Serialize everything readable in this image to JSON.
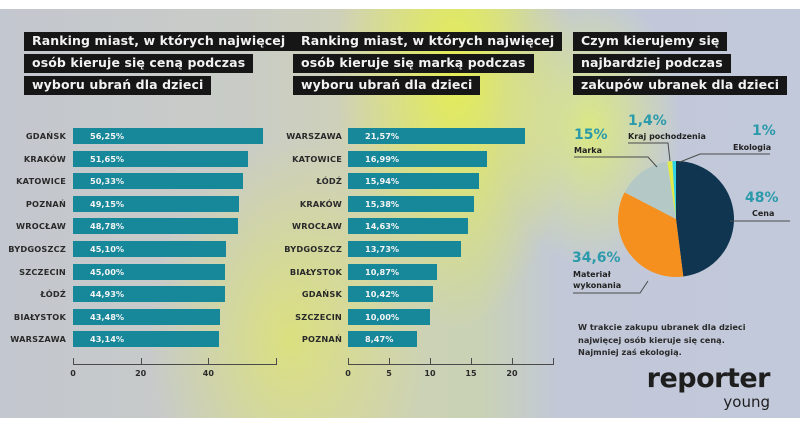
{
  "chart_data": [
    {
      "type": "bar",
      "orientation": "horizontal",
      "title": "Ranking miast, w których najwięcej osób kieruje się ceną podczas wyboru ubrań dla dzieci",
      "title_lines": [
        "Ranking miast, w których najwięcej",
        "osób kieruje się ceną podczas",
        "wyboru ubrań dla dzieci"
      ],
      "categories": [
        "GDAŃSK",
        "KRAKÓW",
        "KATOWICE",
        "POZNAŃ",
        "WROCŁAW",
        "BYDGOSZCZ",
        "SZCZECIN",
        "ŁÓDŹ",
        "BIAŁYSTOK",
        "WARSZAWA"
      ],
      "values": [
        56.25,
        51.65,
        50.33,
        49.15,
        48.78,
        45.1,
        45.0,
        44.93,
        43.48,
        43.14
      ],
      "data_labels": [
        "56,25%",
        "51,65%",
        "50,33%",
        "49,15%",
        "48,78%",
        "45,10%",
        "45,00%",
        "44,93%",
        "43,48%",
        "43,14%"
      ],
      "xlim": [
        0,
        60
      ],
      "xticks": [
        0,
        20,
        40,
        60
      ],
      "xtick_labels": [
        "0",
        "20",
        "40",
        ""
      ],
      "xlabel": "",
      "ylabel": "",
      "bar_color": "#16889a",
      "grid": false
    },
    {
      "type": "bar",
      "orientation": "horizontal",
      "title": "Ranking miast, w których najwięcej osób kieruje się marką podczas wyboru ubrań dla dzieci",
      "title_lines": [
        "Ranking miast, w których najwięcej",
        "osób kieruje się marką podczas",
        "wyboru ubrań dla dzieci"
      ],
      "categories": [
        "WARSZAWA",
        "KATOWICE",
        "ŁÓDŹ",
        "KRAKÓW",
        "WROCŁAW",
        "BYDGOSZCZ",
        "BIAŁYSTOK",
        "GDAŃSK",
        "SZCZECIN",
        "POZNAŃ"
      ],
      "values": [
        21.57,
        16.99,
        15.94,
        15.38,
        14.63,
        13.73,
        10.87,
        10.42,
        10.0,
        8.47
      ],
      "data_labels": [
        "21,57%",
        "16,99%",
        "15,94%",
        "15,38%",
        "14,63%",
        "13,73%",
        "10,87%",
        "10,42%",
        "10,00%",
        "8,47%"
      ],
      "xlim": [
        0,
        25
      ],
      "xticks": [
        0,
        5,
        10,
        15,
        20,
        25
      ],
      "xtick_labels": [
        "0",
        "5",
        "10",
        "15",
        "20",
        ""
      ],
      "xlabel": "",
      "ylabel": "",
      "bar_color": "#16889a",
      "grid": false
    },
    {
      "type": "pie",
      "title": "Czym kierujemy się najbardziej podczas zakupów ubranek dla dzieci",
      "title_lines": [
        "Czym kierujemy się",
        "najbardziej podczas",
        "zakupów ubranek dla dzieci"
      ],
      "slices": [
        {
          "label": "Cena",
          "value": 48,
          "display": "48%",
          "color": "#0f3550"
        },
        {
          "label": "Materiał wykonania",
          "value": 34.6,
          "display": "34,6%",
          "color": "#f5901e"
        },
        {
          "label": "Marka",
          "value": 15,
          "display": "15%",
          "color": "#b4c8c6"
        },
        {
          "label": "Kraj pochodzenia",
          "value": 1.4,
          "display": "1,4%",
          "color": "#e2ea4a"
        },
        {
          "label": "Ekologia",
          "value": 1,
          "display": "1%",
          "color": "#2fd3e6"
        }
      ],
      "start": "top",
      "direction": "clockwise"
    }
  ],
  "labels": {
    "pie_label_material_line1": "Materiał",
    "pie_label_material_line2": "wykonania"
  },
  "note": {
    "lines": [
      "W trakcie zakupu ubranek dla dzieci",
      "najwięcej osób kieruje się ceną.",
      "Najmniej zaś ekologią."
    ]
  },
  "logo": {
    "main": "reporter",
    "sub": "young"
  },
  "colors": {
    "accent": "#16889a",
    "pct_text": "#2b9aab",
    "title_bg": "#161616"
  }
}
